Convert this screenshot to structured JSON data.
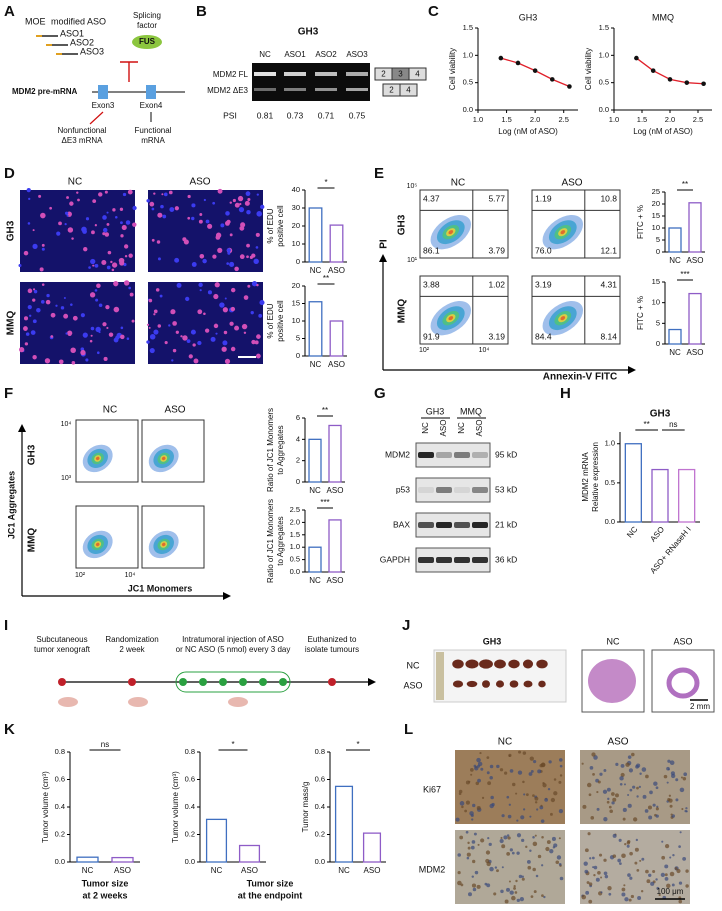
{
  "bar_colors": [
    "#3f6fc0",
    "#8e5cc7",
    "#c074d0"
  ],
  "A": {
    "label": "A",
    "moe": "MOE",
    "moe_text": "modified ASO",
    "asos": [
      "ASO1",
      "ASO2",
      "ASO3"
    ],
    "splicing": [
      "Splicing",
      "factor"
    ],
    "fus": "FUS",
    "premrna": "MDM2 pre-mRNA",
    "exons": [
      "Exon3",
      "Exon4"
    ],
    "nonfunctional": [
      "Nonfunctional",
      "ΔE3 mRNA"
    ],
    "functional": [
      "Functional",
      "mRNA"
    ]
  },
  "B": {
    "label": "B",
    "title": "GH3",
    "lanes": [
      "NC",
      "ASO1",
      "ASO2",
      "ASO3"
    ],
    "bands": [
      "MDM2 FL",
      "MDM2 ΔE3"
    ],
    "fl_exons": [
      "2",
      "3",
      "4"
    ],
    "de3_exons": [
      "2",
      "4"
    ],
    "psi_label": "PSI",
    "psi": [
      "0.81",
      "0.73",
      "0.71",
      "0.75"
    ]
  },
  "C": {
    "label": "C",
    "ylabel": "Cell viability",
    "xlabel": "Log (nM of ASO)",
    "fit_color": "#e0202a",
    "xlim": [
      1.0,
      2.75
    ],
    "xticks": [
      {
        "value": 1.0,
        "label": "1.0"
      },
      1.5,
      {
        "value": 2.0,
        "label": "2.0"
      },
      2.5
    ],
    "ylim": [
      0,
      1.5
    ],
    "yticks": [
      {
        "value": 0,
        "label": "0.0"
      },
      0.5,
      {
        "value": 1.0,
        "label": "1.0"
      },
      1.5
    ],
    "charts": [
      {
        "title": "GH3",
        "x": [
          1.4,
          1.7,
          2.0,
          2.3,
          2.6
        ],
        "y": [
          0.95,
          0.86,
          0.72,
          0.56,
          0.43
        ]
      },
      {
        "title": "MMQ",
        "x": [
          1.4,
          1.7,
          2.0,
          2.3,
          2.6
        ],
        "y": [
          0.95,
          0.72,
          0.56,
          0.5,
          0.48
        ]
      }
    ]
  },
  "D": {
    "label": "D",
    "cols": [
      "NC",
      "ASO"
    ],
    "rows": [
      "GH3",
      "MMQ"
    ],
    "charts": [
      {
        "ylabel": [
          "% of EDU",
          "positive cell"
        ],
        "categories": [
          "NC",
          "ASO"
        ],
        "values": [
          30,
          20.5
        ],
        "ylim": [
          0,
          40
        ],
        "yticks": [
          0,
          10,
          20,
          30,
          40
        ],
        "sig": [
          "*"
        ]
      },
      {
        "ylabel": [
          "% of EDU",
          "positive cell"
        ],
        "categories": [
          "NC",
          "ASO"
        ],
        "values": [
          15.5,
          10
        ],
        "ylim": [
          0,
          20
        ],
        "yticks": [
          0,
          5,
          10,
          15,
          20
        ],
        "sig": [
          "**"
        ]
      }
    ]
  },
  "E": {
    "label": "E",
    "cols": [
      "NC",
      "ASO"
    ],
    "rows": [
      "GH3",
      "MMQ"
    ],
    "ylabel": "PI",
    "xlabel": "Annexin-V FITC",
    "y_ticks": [
      "10⁵",
      "10¹"
    ],
    "x_ticks": [
      "10²",
      "10⁴"
    ],
    "quadrants": [
      [
        [
          "4.37",
          "5.77",
          "86.1",
          "3.79"
        ],
        [
          "1.19",
          "10.8",
          "76.0",
          "12.1"
        ]
      ],
      [
        [
          "3.88",
          "1.02",
          "91.9",
          "3.19"
        ],
        [
          "3.19",
          "4.31",
          "84.4",
          "8.14"
        ]
      ]
    ],
    "charts": [
      {
        "ylabel": [
          "FITC + %"
        ],
        "categories": [
          "NC",
          "ASO"
        ],
        "values": [
          10,
          20.5
        ],
        "ylim": [
          0,
          25
        ],
        "yticks": [
          0,
          5,
          10,
          15,
          20,
          25
        ],
        "sig": [
          "**"
        ]
      },
      {
        "ylabel": [
          "FITC + %"
        ],
        "categories": [
          "NC",
          "ASO"
        ],
        "values": [
          3.5,
          12.2
        ],
        "ylim": [
          0,
          15
        ],
        "yticks": [
          0,
          5,
          10,
          15
        ],
        "sig": [
          "***"
        ]
      }
    ]
  },
  "F": {
    "label": "F",
    "cols": [
      "NC",
      "ASO"
    ],
    "rows": [
      "GH3",
      "MMQ"
    ],
    "ylabel": "JC1 Aggregates",
    "xlabel": "JC1 Monomers",
    "y_ticks": [
      "10⁴",
      "10³"
    ],
    "x_ticks": [
      "10²",
      "10⁴"
    ],
    "charts": [
      {
        "ylabel": [
          "Ratio of JC1 Monomers",
          "to Aggregates"
        ],
        "categories": [
          "NC",
          "ASO"
        ],
        "values": [
          4.0,
          5.3
        ],
        "ylim": [
          0,
          6
        ],
        "yticks": [
          0,
          2,
          4,
          6
        ],
        "sig": [
          "**"
        ]
      },
      {
        "ylabel": [
          "Ratio of JC1 Monomers",
          "to Aggregates"
        ],
        "categories": [
          "NC",
          "ASO"
        ],
        "values": [
          1.0,
          2.1
        ],
        "ylim": [
          0,
          2.5
        ],
        "yticks": [
          {
            "value": 0,
            "label": "0.0"
          },
          0.5,
          {
            "value": 1.0,
            "label": "1.0"
          },
          1.5,
          {
            "value": 2.0,
            "label": "2.0"
          },
          2.5
        ],
        "sig": [
          "***"
        ]
      }
    ]
  },
  "G": {
    "label": "G",
    "groups": [
      "GH3",
      "MMQ"
    ],
    "lanes": [
      "NC",
      "ASO",
      "NC",
      "ASO"
    ],
    "proteins": [
      "MDM2",
      "p53",
      "BAX",
      "GAPDH"
    ],
    "sizes": [
      "95 kD",
      "53 kD",
      "21 kD",
      "36 kD"
    ]
  },
  "H": {
    "label": "H",
    "chart": {
      "title": "GH3",
      "ylabel": [
        "MDM2 mRNA",
        "Relative expression"
      ],
      "categories": [
        "NC",
        "ASO",
        "ASO+ RNaseH I"
      ],
      "values": [
        1.0,
        0.67,
        0.67
      ],
      "ylim": [
        0,
        1.15
      ],
      "yticks": [
        {
          "value": 0,
          "label": "0.0"
        },
        0.5,
        {
          "value": 1.0,
          "label": "1.0"
        }
      ],
      "sig": [
        "**",
        "ns"
      ]
    }
  },
  "I": {
    "label": "I",
    "steps": [
      [
        "Subcutaneous",
        "tumor xenograft"
      ],
      [
        "Randomization",
        "2 week"
      ],
      [
        "Intratumoral injection of ASO",
        "or NC ASO (5 nmol) every 3 day"
      ],
      [
        "Euthanized to",
        "isolate tumours"
      ]
    ]
  },
  "J": {
    "label": "J",
    "title": "GH3",
    "rows": [
      "NC",
      "ASO"
    ],
    "he": [
      "NC",
      "ASO"
    ],
    "scale": "2 mm"
  },
  "K": {
    "label": "K",
    "charts": [
      {
        "ylabel": [
          "Tumor volume (cm³)"
        ],
        "categories": [
          "NC",
          "ASO"
        ],
        "values": [
          0.035,
          0.032
        ],
        "ylim": [
          0,
          0.8
        ],
        "yticks": [
          {
            "value": 0,
            "label": "0.0"
          },
          0.2,
          0.4,
          0.6,
          0.8
        ],
        "sig": [
          "ns"
        ]
      },
      {
        "ylabel": [
          "Tumor volume (cm³)"
        ],
        "categories": [
          "NC",
          "ASO"
        ],
        "values": [
          0.31,
          0.12
        ],
        "ylim": [
          0,
          0.8
        ],
        "yticks": [
          {
            "value": 0,
            "label": "0.0"
          },
          0.2,
          0.4,
          0.6,
          0.8
        ],
        "sig": [
          "*"
        ]
      },
      {
        "ylabel": [
          "Tumor mass/g"
        ],
        "categories": [
          "NC",
          "ASO"
        ],
        "values": [
          0.55,
          0.21
        ],
        "ylim": [
          0,
          0.8
        ],
        "yticks": [
          {
            "value": 0,
            "label": "0.0"
          },
          0.2,
          0.4,
          0.6,
          0.8
        ],
        "sig": [
          "*"
        ]
      }
    ],
    "captions": [
      [
        "Tumor size",
        "at 2 weeks"
      ],
      [
        "Tumor size",
        "at the endpoint"
      ]
    ]
  },
  "L": {
    "label": "L",
    "cols": [
      "NC",
      "ASO"
    ],
    "rows": [
      "Ki67",
      "MDM2"
    ],
    "scale": "100 μm"
  }
}
